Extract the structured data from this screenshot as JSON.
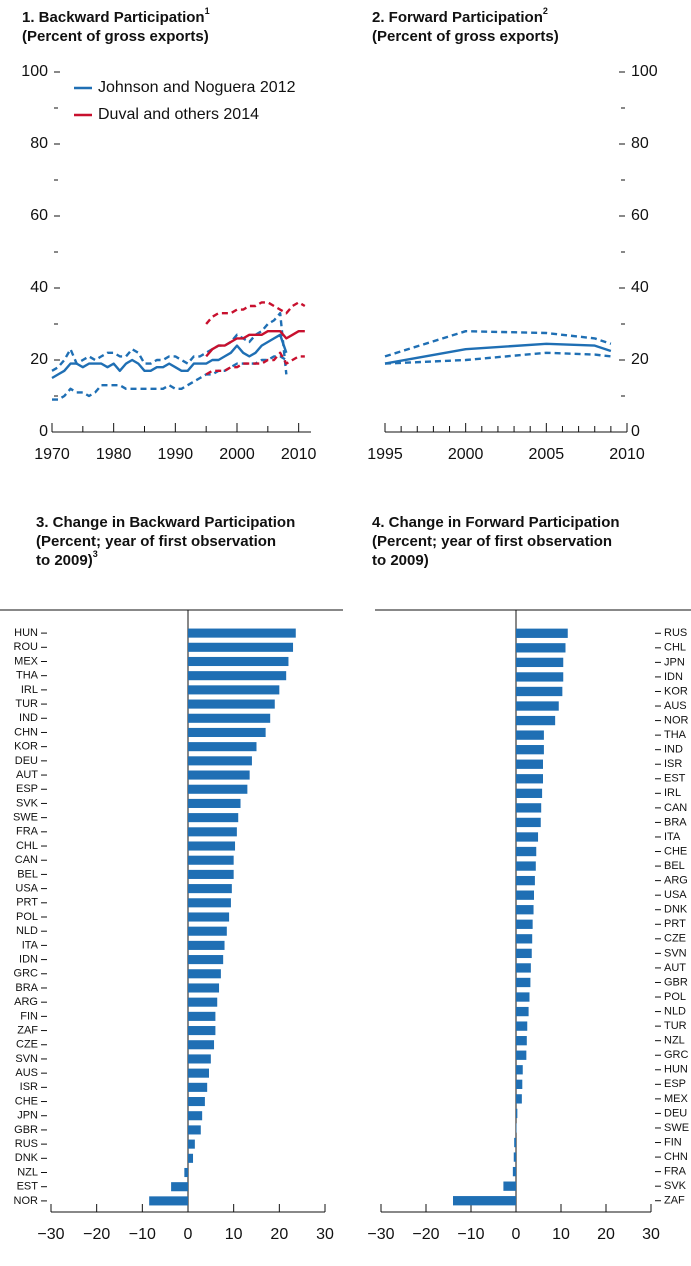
{
  "chart_data": [
    {
      "type": "line",
      "title": "1. Backward Participation",
      "title_note": "1",
      "subtitle": [
        "(Percent of gross exports)"
      ],
      "xlim": [
        1970,
        2012
      ],
      "xticks": [
        1970,
        1980,
        1990,
        2000,
        2010
      ],
      "xminor_ticks": [
        1975,
        1985,
        1995,
        2005
      ],
      "ylim": [
        0,
        100
      ],
      "yticks": [
        0,
        20,
        40,
        60,
        80,
        100
      ],
      "yminor_ticks": [
        10,
        30,
        50,
        70,
        90
      ],
      "y_axis_side": "left",
      "legend": "upper left",
      "series": [
        {
          "name": "Johnson and Noguera 2012",
          "color": "#1f6fb4",
          "dashed": false,
          "x": [
            1970,
            1971,
            1972,
            1973,
            1974,
            1975,
            1976,
            1977,
            1978,
            1979,
            1980,
            1981,
            1982,
            1983,
            1984,
            1985,
            1986,
            1987,
            1988,
            1989,
            1990,
            1991,
            1992,
            1993,
            1994,
            1995,
            1996,
            1997,
            1998,
            1999,
            2000,
            2001,
            2002,
            2003,
            2004,
            2005,
            2006,
            2007,
            2008
          ],
          "values": [
            15,
            16,
            17,
            19,
            19,
            18,
            19,
            19,
            19,
            18,
            19,
            17,
            19,
            20,
            19,
            17,
            17,
            18,
            18,
            19,
            18,
            17,
            17,
            19,
            19,
            19,
            20,
            20,
            21,
            22,
            24,
            22,
            21,
            22,
            24,
            25,
            26,
            27,
            22
          ]
        },
        {
          "color": "#1f6fb4",
          "dashed": true,
          "x": [
            1970,
            1971,
            1972,
            1973,
            1974,
            1975,
            1976,
            1977,
            1978,
            1979,
            1980,
            1981,
            1982,
            1983,
            1984,
            1985,
            1986,
            1987,
            1988,
            1989,
            1990,
            1991,
            1992,
            1993,
            1994,
            1995,
            1996,
            1997,
            1998,
            1999,
            2000,
            2001,
            2002,
            2003,
            2004,
            2005,
            2006,
            2007,
            2008
          ],
          "values": [
            17,
            18,
            20,
            23,
            19,
            20,
            21,
            20,
            21,
            22,
            22,
            21,
            21,
            23,
            22,
            19,
            19,
            20,
            20,
            21,
            21,
            20,
            19,
            21,
            21,
            22,
            23,
            24,
            24,
            25,
            27,
            26,
            25,
            27,
            28,
            30,
            31,
            33,
            16
          ]
        },
        {
          "color": "#1f6fb4",
          "dashed": true,
          "x": [
            1970,
            1971,
            1972,
            1973,
            1974,
            1975,
            1976,
            1977,
            1978,
            1979,
            1980,
            1981,
            1982,
            1983,
            1984,
            1985,
            1986,
            1987,
            1988,
            1989,
            1990,
            1991,
            1992,
            1993,
            1994,
            1995,
            1996,
            1997,
            1998,
            1999,
            2000,
            2001,
            2002,
            2003,
            2004,
            2005,
            2006,
            2007,
            2008
          ],
          "values": [
            9,
            9,
            10,
            12,
            11,
            11,
            10,
            11,
            13,
            13,
            13,
            13,
            12,
            12,
            12,
            12,
            12,
            12,
            12,
            13,
            12,
            12,
            13,
            14,
            15,
            16,
            16,
            17,
            17,
            18,
            19,
            19,
            19,
            19,
            20,
            20,
            21,
            21,
            20
          ]
        },
        {
          "name": "Duval and others 2014",
          "color": "#c8102e",
          "dashed": false,
          "x": [
            1995,
            1996,
            1997,
            1998,
            1999,
            2000,
            2001,
            2002,
            2003,
            2004,
            2005,
            2006,
            2007,
            2008,
            2009,
            2010,
            2011
          ],
          "values": [
            21,
            23,
            24,
            24,
            25,
            26,
            26,
            27,
            27,
            27,
            28,
            28,
            28,
            26,
            27,
            28,
            28
          ]
        },
        {
          "color": "#c8102e",
          "dashed": true,
          "x": [
            1995,
            1996,
            1997,
            1998,
            1999,
            2000,
            2001,
            2002,
            2003,
            2004,
            2005,
            2006,
            2007,
            2008,
            2009,
            2010,
            2011
          ],
          "values": [
            30,
            32,
            33,
            33,
            33,
            34,
            34,
            35,
            35,
            36,
            36,
            35,
            34,
            33,
            35,
            36,
            35
          ]
        },
        {
          "color": "#c8102e",
          "dashed": true,
          "x": [
            1995,
            1996,
            1997,
            1998,
            1999,
            2000,
            2001,
            2002,
            2003,
            2004,
            2005,
            2006,
            2007,
            2008,
            2009,
            2010,
            2011
          ],
          "values": [
            16,
            17,
            17,
            17,
            18,
            18,
            19,
            19,
            19,
            19,
            20,
            20,
            22,
            19,
            20,
            21,
            21
          ]
        }
      ]
    },
    {
      "type": "line",
      "title": "2. Forward Participation",
      "title_note": "2",
      "subtitle": [
        "(Percent of gross exports)"
      ],
      "xlim": [
        1995,
        2010
      ],
      "xticks": [
        1995,
        2000,
        2005,
        2010
      ],
      "xminor_ticks": [
        1996,
        1997,
        1998,
        1999,
        2001,
        2002,
        2003,
        2004,
        2006,
        2007,
        2008,
        2009
      ],
      "ylim": [
        0,
        100
      ],
      "yticks": [
        0,
        20,
        40,
        60,
        80,
        100
      ],
      "yminor_ticks": [
        10,
        30,
        50,
        70,
        90
      ],
      "y_axis_side": "right",
      "series": [
        {
          "color": "#1f6fb4",
          "dashed": false,
          "x": [
            1995,
            2000,
            2005,
            2008,
            2009
          ],
          "values": [
            19,
            23,
            24.5,
            24,
            22.5
          ]
        },
        {
          "color": "#1f6fb4",
          "dashed": true,
          "x": [
            1995,
            2000,
            2005,
            2008,
            2009
          ],
          "values": [
            21,
            28,
            27.5,
            26,
            24.5
          ]
        },
        {
          "color": "#1f6fb4",
          "dashed": true,
          "x": [
            1995,
            2000,
            2005,
            2008,
            2009
          ],
          "values": [
            19,
            20,
            22,
            21.5,
            21
          ]
        }
      ]
    },
    {
      "type": "hbar",
      "title": "3. Change in Backward Participation",
      "title_note": "3",
      "subtitle": [
        "(Percent; year of first observation",
        "to 2009)"
      ],
      "color": "#1f6fb4",
      "y_axis_side": "left",
      "xlim": [
        -30,
        30
      ],
      "xticks": [
        {
          "value": -30,
          "label": "−30"
        },
        {
          "value": -20,
          "label": "−20"
        },
        {
          "value": -10,
          "label": "−10"
        },
        0,
        10,
        20,
        30
      ],
      "categories": [
        "HUN",
        "ROU",
        "MEX",
        "THA",
        "IRL",
        "TUR",
        "IND",
        "CHN",
        "KOR",
        "DEU",
        "AUT",
        "ESP",
        "SVK",
        "SWE",
        "FRA",
        "CHL",
        "CAN",
        "BEL",
        "USA",
        "PRT",
        "POL",
        "NLD",
        "ITA",
        "IDN",
        "GRC",
        "BRA",
        "ARG",
        "FIN",
        "ZAF",
        "CZE",
        "SVN",
        "AUS",
        "ISR",
        "CHE",
        "JPN",
        "GBR",
        "RUS",
        "DNK",
        "NZL",
        "EST",
        "NOR"
      ],
      "values": [
        23.6,
        23,
        22,
        21.5,
        20,
        19,
        18,
        17,
        15,
        14,
        13.5,
        13,
        11.5,
        11,
        10.7,
        10.3,
        10,
        10,
        9.6,
        9.4,
        9,
        8.5,
        8,
        7.7,
        7.2,
        6.8,
        6.4,
        6,
        6,
        5.7,
        5,
        4.6,
        4.2,
        3.7,
        3.1,
        2.8,
        1.5,
        1.1,
        -0.8,
        -3.7,
        -8.5
      ]
    },
    {
      "type": "hbar",
      "title": "4. Change in Forward Participation",
      "subtitle": [
        "(Percent; year of first observation",
        "to 2009)"
      ],
      "color": "#1f6fb4",
      "y_axis_side": "right",
      "xlim": [
        -30,
        30
      ],
      "xticks": [
        {
          "value": -30,
          "label": "−30"
        },
        {
          "value": -20,
          "label": "−20"
        },
        {
          "value": -10,
          "label": "−10"
        },
        0,
        10,
        20,
        30
      ],
      "categories": [
        "RUS",
        "CHL",
        "JPN",
        "IDN",
        "KOR",
        "AUS",
        "NOR",
        "THA",
        "IND",
        "ISR",
        "EST",
        "IRL",
        "CAN",
        "BRA",
        "ITA",
        "CHE",
        "BEL",
        "ARG",
        "USA",
        "DNK",
        "PRT",
        "CZE",
        "SVN",
        "AUT",
        "GBR",
        "POL",
        "NLD",
        "TUR",
        "NZL",
        "GRC",
        "HUN",
        "ESP",
        "MEX",
        "DEU",
        "SWE",
        "FIN",
        "CHN",
        "FRA",
        "SVK",
        "ZAF"
      ],
      "values": [
        11.5,
        11,
        10.5,
        10.5,
        10.3,
        9.5,
        8.7,
        6.2,
        6.2,
        6,
        6,
        5.8,
        5.6,
        5.5,
        4.9,
        4.5,
        4.4,
        4.2,
        4,
        3.9,
        3.7,
        3.6,
        3.5,
        3.3,
        3.2,
        3,
        2.8,
        2.5,
        2.4,
        2.3,
        1.5,
        1.4,
        1.3,
        0.3,
        0.1,
        -0.4,
        -0.5,
        -0.7,
        -2.8,
        -14
      ]
    }
  ]
}
